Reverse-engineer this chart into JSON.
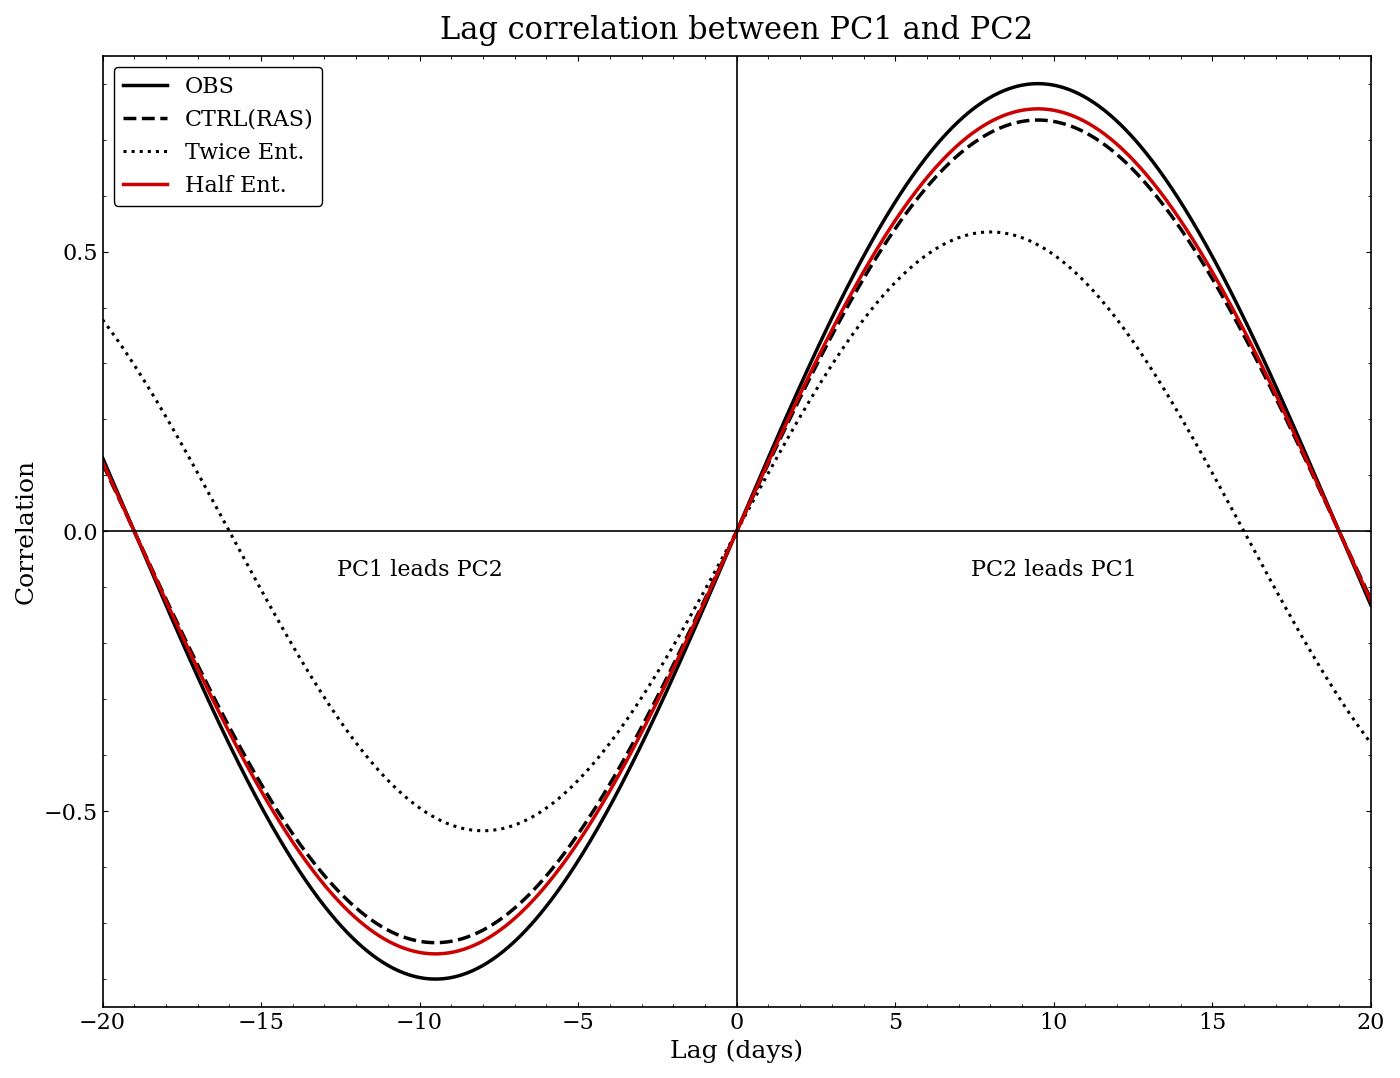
{
  "title": "Lag correlation between PC1 and PC2",
  "xlabel": "Lag (days)",
  "ylabel": "Correlation",
  "xlim": [
    -20,
    20
  ],
  "ylim": [
    -0.85,
    0.85
  ],
  "xticks": [
    -20,
    -15,
    -10,
    -5,
    0,
    5,
    10,
    15,
    20
  ],
  "yticks": [
    -0.5,
    0.0,
    0.5
  ],
  "text_pc1_leads": "PC1 leads PC2",
  "text_pc2_leads": "PC2 leads PC1",
  "series": [
    {
      "label": "OBS",
      "color": "#000000",
      "linestyle": "solid",
      "linewidth": 2.5,
      "amplitude": 0.8,
      "phase_shift": 9.5,
      "period": 38.0
    },
    {
      "label": "CTRL(RAS)",
      "color": "#000000",
      "linestyle": "dashed",
      "linewidth": 2.5,
      "amplitude": 0.735,
      "phase_shift": 9.5,
      "period": 38.0
    },
    {
      "label": "Twice Ent.",
      "color": "#000000",
      "linestyle": "dotted",
      "linewidth": 2.2,
      "amplitude": 0.535,
      "phase_shift": 8.0,
      "period": 38.0
    },
    {
      "label": "Half Ent.",
      "color": "#cc0000",
      "linestyle": "solid",
      "linewidth": 2.5,
      "amplitude": 0.755,
      "phase_shift": 9.5,
      "period": 38.0
    }
  ]
}
